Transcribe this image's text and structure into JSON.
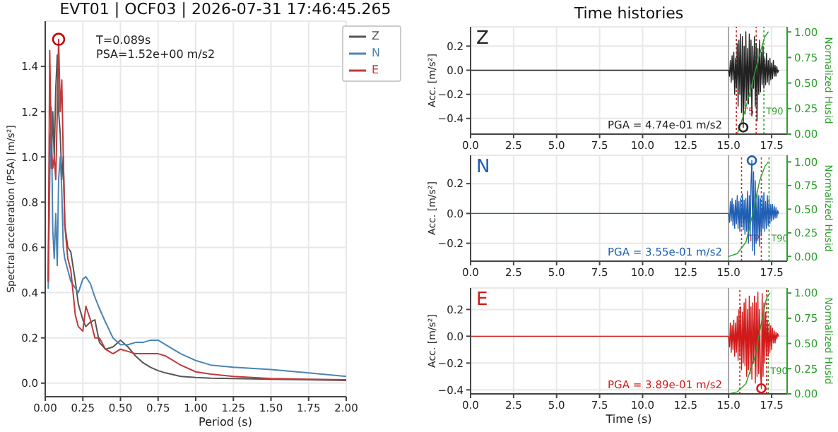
{
  "chart_data": [
    {
      "type": "line",
      "title": "EVT01 | OCF03 | 2026-07-31 17:46:45.265",
      "xlabel": "Period (s)",
      "ylabel": "Spectral acceleration (PSA) [m/s²]",
      "x": [
        0.02,
        0.03,
        0.04,
        0.05,
        0.06,
        0.07,
        0.08,
        0.089,
        0.1,
        0.11,
        0.12,
        0.13,
        0.15,
        0.17,
        0.2,
        0.22,
        0.25,
        0.27,
        0.3,
        0.33,
        0.36,
        0.4,
        0.45,
        0.5,
        0.55,
        0.6,
        0.65,
        0.7,
        0.75,
        0.8,
        0.9,
        1.0,
        1.1,
        1.25,
        1.5,
        1.75,
        2.0
      ],
      "series": [
        {
          "name": "Z",
          "color": "#555555",
          "values": [
            0.45,
            1.1,
            0.95,
            1.2,
            1.0,
            1.3,
            1.45,
            1.2,
            1.1,
            0.9,
            1.0,
            0.7,
            0.6,
            0.58,
            0.45,
            0.35,
            0.28,
            0.25,
            0.27,
            0.28,
            0.18,
            0.15,
            0.16,
            0.19,
            0.16,
            0.12,
            0.09,
            0.07,
            0.055,
            0.045,
            0.03,
            0.025,
            0.022,
            0.02,
            0.017,
            0.015,
            0.012
          ]
        },
        {
          "name": "N",
          "color": "#4a85b5",
          "values": [
            0.42,
            0.9,
            1.22,
            0.68,
            0.55,
            0.75,
            0.52,
            0.9,
            1.0,
            0.85,
            0.6,
            0.55,
            0.5,
            0.45,
            0.42,
            0.4,
            0.46,
            0.47,
            0.44,
            0.38,
            0.33,
            0.27,
            0.2,
            0.17,
            0.17,
            0.18,
            0.18,
            0.19,
            0.19,
            0.17,
            0.13,
            0.1,
            0.08,
            0.07,
            0.06,
            0.045,
            0.03
          ]
        },
        {
          "name": "E",
          "color": "#c0393b",
          "values": [
            0.45,
            1.47,
            1.05,
            0.95,
            1.0,
            0.9,
            1.2,
            1.52,
            1.2,
            1.34,
            1.0,
            0.7,
            0.55,
            0.5,
            0.3,
            0.25,
            0.23,
            0.34,
            0.28,
            0.2,
            0.2,
            0.15,
            0.13,
            0.15,
            0.14,
            0.13,
            0.13,
            0.13,
            0.13,
            0.12,
            0.08,
            0.05,
            0.04,
            0.03,
            0.02,
            0.017,
            0.015
          ]
        },
        {
          "type": "scatter",
          "color": "#c00000",
          "x": [
            0.089
          ],
          "values": [
            1.52
          ]
        }
      ],
      "xlim": [
        0,
        2
      ],
      "xticks": [
        {
          "value": 0,
          "label": "0.00"
        },
        {
          "value": 0.25,
          "label": "0.25"
        },
        {
          "value": 0.5,
          "label": "0.50"
        },
        {
          "value": 0.75,
          "label": "0.75"
        },
        {
          "value": 1,
          "label": "1.00"
        },
        {
          "value": 1.25,
          "label": "1.25"
        },
        {
          "value": 1.5,
          "label": "1.50"
        },
        {
          "value": 1.75,
          "label": "1.75"
        },
        {
          "value": 2,
          "label": "2.00"
        }
      ],
      "ylim": [
        -0.06,
        1.6
      ],
      "yticks": [
        {
          "value": 0,
          "label": "0.0"
        },
        {
          "value": 0.2,
          "label": "0.2"
        },
        {
          "value": 0.4,
          "label": "0.4"
        },
        {
          "value": 0.6,
          "label": "0.6"
        },
        {
          "value": 0.8,
          "label": "0.8"
        },
        {
          "value": 1,
          "label": "1.0"
        },
        {
          "value": 1.2,
          "label": "1.2"
        },
        {
          "value": 1.4,
          "label": "1.4"
        }
      ],
      "grid": true,
      "legend": "top right",
      "annotations": [
        "T=0.089s",
        "PSA=1.52e+00 m/s2"
      ]
    },
    {
      "type": "line",
      "title": "Time histories",
      "ylabel": "Acc. [m/s²]",
      "y2label": "Normalized Husid",
      "x": [
        0,
        15.0,
        15.05,
        15.1,
        15.15,
        15.2,
        15.25,
        15.3,
        15.35,
        15.4,
        15.45,
        15.5,
        15.55,
        15.6,
        15.65,
        15.7,
        15.75,
        15.8,
        15.85,
        15.9,
        15.95,
        16.0,
        16.05,
        16.1,
        16.15,
        16.2,
        16.25,
        16.3,
        16.35,
        16.4,
        16.45,
        16.5,
        16.55,
        16.6,
        16.65,
        16.7,
        16.75,
        16.8,
        16.85,
        16.9,
        16.95,
        17.0,
        17.05,
        17.1,
        17.15,
        17.2,
        17.25,
        17.3,
        17.35,
        17.4,
        17.45,
        17.5,
        17.55,
        17.6,
        17.65,
        17.7,
        17.75,
        17.8,
        17.85,
        17.9
      ],
      "series": [
        {
          "color": "#222222",
          "values": [
            0,
            0,
            -0.05,
            0.08,
            -0.1,
            0.12,
            -0.08,
            0.15,
            -0.2,
            0.1,
            -0.15,
            0.22,
            -0.3,
            0.25,
            -0.2,
            0.3,
            -0.35,
            0.28,
            -0.474,
            0.2,
            -0.3,
            0.32,
            -0.25,
            0.18,
            -0.28,
            0.3,
            -0.22,
            0.25,
            -0.38,
            0.2,
            -0.15,
            0.28,
            -0.3,
            0.22,
            -0.42,
            0.18,
            -0.2,
            0.25,
            -0.18,
            0.15,
            -0.12,
            0.2,
            -0.15,
            0.1,
            -0.12,
            0.14,
            -0.1,
            0.08,
            -0.12,
            0.1,
            -0.08,
            0.06,
            -0.07,
            0.08,
            -0.05,
            0.04,
            -0.05,
            0.03,
            -0.02,
            0.0
          ]
        },
        {
          "color": "#2ca02c",
          "axis": "y2",
          "x": [
            15.5,
            15.9,
            16.3,
            16.7,
            17.1,
            17.3
          ],
          "values": [
            0,
            0.2,
            0.45,
            0.72,
            0.95,
            1.0
          ]
        },
        {
          "type": "scatter",
          "color": "#222222",
          "x": [
            15.85
          ],
          "values": [
            -0.474
          ]
        }
      ],
      "xlim": [
        0,
        18.4
      ],
      "xticks": [
        {
          "value": 0,
          "label": "0.0"
        },
        {
          "value": 2.5,
          "label": "2.5"
        },
        {
          "value": 5,
          "label": "5.0"
        },
        {
          "value": 7.5,
          "label": "7.5"
        },
        {
          "value": 10,
          "label": "10.0"
        },
        {
          "value": 12.5,
          "label": "12.5"
        },
        {
          "value": 15,
          "label": "15.0"
        },
        {
          "value": 17.5,
          "label": "17.5"
        }
      ],
      "ylim": [
        -0.53,
        0.36
      ],
      "yticks": [
        {
          "value": -0.4,
          "label": "−0.4"
        },
        {
          "value": -0.2,
          "label": "−0.2"
        },
        {
          "value": 0,
          "label": "0.0"
        },
        {
          "value": 0.2,
          "label": "0.2"
        }
      ],
      "y2lim": [
        0,
        1.05
      ],
      "y2ticks": [
        {
          "value": 0,
          "label": "0.00"
        },
        {
          "value": 0.25,
          "label": "0.25"
        },
        {
          "value": 0.5,
          "label": "0.50"
        },
        {
          "value": 0.75,
          "label": "0.75"
        },
        {
          "value": 1,
          "label": "1.00"
        }
      ],
      "ref_lines": [
        {
          "axis": "x",
          "value": 15.0,
          "color": "#999999",
          "line_style": "solid"
        },
        {
          "axis": "x",
          "value": 15.45,
          "color": "#d62728",
          "line_style": "dotted"
        },
        {
          "axis": "x",
          "value": 16.6,
          "color": "#d62728",
          "line_style": "dotted",
          "label": "T5"
        },
        {
          "axis": "x",
          "value": 17.05,
          "color": "#2ca02c",
          "line_style": "dotted",
          "label": "T90"
        }
      ],
      "grid": true,
      "annotations": [
        "Z",
        "PGA = 4.74e-01 m/s2"
      ]
    },
    {
      "type": "line",
      "ylabel": "Acc. [m/s²]",
      "y2label": "Normalized Husid",
      "x": [
        0,
        15.0,
        15.05,
        15.1,
        15.15,
        15.2,
        15.25,
        15.3,
        15.35,
        15.4,
        15.45,
        15.5,
        15.55,
        15.6,
        15.65,
        15.7,
        15.75,
        15.8,
        15.85,
        15.9,
        15.95,
        16.0,
        16.05,
        16.1,
        16.15,
        16.2,
        16.25,
        16.3,
        16.35,
        16.4,
        16.45,
        16.5,
        16.55,
        16.6,
        16.65,
        16.7,
        16.75,
        16.8,
        16.85,
        16.9,
        16.95,
        17.0,
        17.05,
        17.1,
        17.15,
        17.2,
        17.25,
        17.3,
        17.35,
        17.4,
        17.45,
        17.5,
        17.55,
        17.6,
        17.65,
        17.7,
        17.75,
        17.8,
        17.85,
        17.9
      ],
      "series": [
        {
          "color": "#1f5fb4",
          "values": [
            0,
            0,
            -0.06,
            0.08,
            -0.05,
            0.1,
            -0.08,
            0.06,
            -0.1,
            0.09,
            -0.07,
            0.12,
            -0.1,
            0.08,
            -0.12,
            0.1,
            -0.09,
            0.13,
            -0.11,
            0.09,
            -0.14,
            0.1,
            -0.12,
            0.15,
            -0.2,
            0.12,
            -0.15,
            0.2,
            0.355,
            -0.25,
            0.28,
            -0.28,
            0.22,
            -0.2,
            0.15,
            -0.18,
            0.12,
            -0.22,
            0.1,
            -0.15,
            0.12,
            -0.1,
            0.14,
            -0.12,
            0.08,
            -0.1,
            0.12,
            -0.08,
            0.1,
            -0.07,
            0.06,
            -0.05,
            0.06,
            -0.04,
            0.05,
            -0.03,
            0.04,
            -0.03,
            0.02,
            0.0
          ]
        },
        {
          "color": "#2ca02c",
          "axis": "y2",
          "x": [
            15.0,
            15.5,
            16.0,
            16.4,
            16.8,
            17.1,
            17.3
          ],
          "values": [
            0,
            0.03,
            0.15,
            0.45,
            0.8,
            0.95,
            1.0
          ]
        },
        {
          "type": "scatter",
          "color": "#1f5fb4",
          "x": [
            16.35
          ],
          "values": [
            0.355
          ]
        }
      ],
      "xlim": [
        0,
        18.4
      ],
      "xticks": [
        {
          "value": 0,
          "label": "0.0"
        },
        {
          "value": 2.5,
          "label": "2.5"
        },
        {
          "value": 5,
          "label": "5.0"
        },
        {
          "value": 7.5,
          "label": "7.5"
        },
        {
          "value": 10,
          "label": "10.0"
        },
        {
          "value": 12.5,
          "label": "12.5"
        },
        {
          "value": 15,
          "label": "15.0"
        },
        {
          "value": 17.5,
          "label": "17.5"
        }
      ],
      "ylim": [
        -0.32,
        0.39
      ],
      "yticks": [
        {
          "value": -0.2,
          "label": "−0.2"
        },
        {
          "value": 0,
          "label": "0.0"
        },
        {
          "value": 0.2,
          "label": "0.2"
        }
      ],
      "y2lim": [
        -0.05,
        1.07
      ],
      "y2ticks": [
        {
          "value": 0,
          "label": "0.00"
        },
        {
          "value": 0.25,
          "label": "0.25"
        },
        {
          "value": 0.5,
          "label": "0.50"
        },
        {
          "value": 0.75,
          "label": "0.75"
        },
        {
          "value": 1,
          "label": "1.00"
        }
      ],
      "ref_lines": [
        {
          "axis": "x",
          "value": 15.0,
          "color": "#999999",
          "line_style": "solid"
        },
        {
          "axis": "x",
          "value": 15.75,
          "color": "#d62728",
          "line_style": "dotted"
        },
        {
          "axis": "x",
          "value": 16.9,
          "color": "#d62728",
          "line_style": "dotted",
          "label": "TP"
        },
        {
          "axis": "x",
          "value": 17.35,
          "color": "#2ca02c",
          "line_style": "dotted",
          "label": "T90"
        }
      ],
      "grid": true,
      "annotations": [
        "N",
        "PGA = 3.55e-01 m/s2"
      ]
    },
    {
      "type": "line",
      "xlabel": "Time (s)",
      "ylabel": "Acc. [m/s²]",
      "y2label": "Normalized Husid",
      "x": [
        0,
        15.0,
        15.05,
        15.1,
        15.15,
        15.2,
        15.25,
        15.3,
        15.35,
        15.4,
        15.45,
        15.5,
        15.55,
        15.6,
        15.65,
        15.7,
        15.75,
        15.8,
        15.85,
        15.9,
        15.95,
        16.0,
        16.05,
        16.1,
        16.15,
        16.2,
        16.25,
        16.3,
        16.35,
        16.4,
        16.45,
        16.5,
        16.55,
        16.6,
        16.65,
        16.7,
        16.75,
        16.8,
        16.85,
        16.9,
        16.95,
        17.0,
        17.05,
        17.1,
        17.15,
        17.2,
        17.25,
        17.3,
        17.35,
        17.4,
        17.45,
        17.5,
        17.55,
        17.6,
        17.65,
        17.7,
        17.75,
        17.8,
        17.85,
        17.9
      ],
      "series": [
        {
          "color": "#d11a1a",
          "values": [
            0,
            0,
            -0.08,
            0.1,
            -0.12,
            0.08,
            -0.1,
            0.12,
            -0.15,
            0.1,
            -0.12,
            0.15,
            -0.18,
            0.2,
            -0.15,
            0.22,
            -0.25,
            0.18,
            -0.2,
            0.25,
            -0.22,
            0.28,
            -0.3,
            0.2,
            -0.25,
            0.3,
            -0.28,
            0.22,
            -0.32,
            0.25,
            -0.2,
            0.3,
            -0.35,
            0.25,
            -0.3,
            0.33,
            -0.28,
            0.2,
            -0.25,
            -0.389,
            0.32,
            -0.3,
            0.25,
            -0.2,
            0.18,
            -0.15,
            0.12,
            -0.15,
            0.1,
            -0.12,
            0.08,
            -0.1,
            0.06,
            -0.05,
            0.04,
            -0.05,
            0.03,
            -0.02,
            0.02,
            0.0
          ]
        },
        {
          "color": "#2ca02c",
          "axis": "y2",
          "x": [
            15.0,
            15.5,
            16.0,
            16.5,
            16.9,
            17.2,
            17.4
          ],
          "values": [
            0,
            0.02,
            0.1,
            0.35,
            0.7,
            0.95,
            1.0
          ]
        },
        {
          "type": "scatter",
          "color": "#d11a1a",
          "x": [
            16.9
          ],
          "values": [
            -0.389
          ]
        }
      ],
      "xlim": [
        0,
        18.4
      ],
      "xticks": [
        {
          "value": 0,
          "label": "0.0"
        },
        {
          "value": 2.5,
          "label": "2.5"
        },
        {
          "value": 5,
          "label": "5.0"
        },
        {
          "value": 7.5,
          "label": "7.5"
        },
        {
          "value": 10,
          "label": "10.0"
        },
        {
          "value": 12.5,
          "label": "12.5"
        },
        {
          "value": 15,
          "label": "15.0"
        },
        {
          "value": 17.5,
          "label": "17.5"
        }
      ],
      "ylim": [
        -0.43,
        0.36
      ],
      "yticks": [
        {
          "value": -0.4,
          "label": "−0.4"
        },
        {
          "value": -0.2,
          "label": "−0.2"
        },
        {
          "value": 0,
          "label": "0.0"
        },
        {
          "value": 0.2,
          "label": "0.2"
        }
      ],
      "y2lim": [
        0,
        1.05
      ],
      "y2ticks": [
        {
          "value": 0,
          "label": "0.00"
        },
        {
          "value": 0.25,
          "label": "0.25"
        },
        {
          "value": 0.5,
          "label": "0.50"
        },
        {
          "value": 0.75,
          "label": "0.75"
        },
        {
          "value": 1,
          "label": "1.00"
        }
      ],
      "ref_lines": [
        {
          "axis": "x",
          "value": 15.0,
          "color": "#999999",
          "line_style": "solid"
        },
        {
          "axis": "x",
          "value": 15.65,
          "color": "#d62728",
          "line_style": "dotted"
        },
        {
          "axis": "x",
          "value": 17.2,
          "color": "#d62728",
          "line_style": "dotted"
        },
        {
          "axis": "x",
          "value": 17.3,
          "color": "#2ca02c",
          "line_style": "dotted",
          "label": "T90"
        }
      ],
      "grid": true,
      "annotations": [
        "E",
        "PGA = 3.89e-01 m/s2"
      ]
    }
  ]
}
